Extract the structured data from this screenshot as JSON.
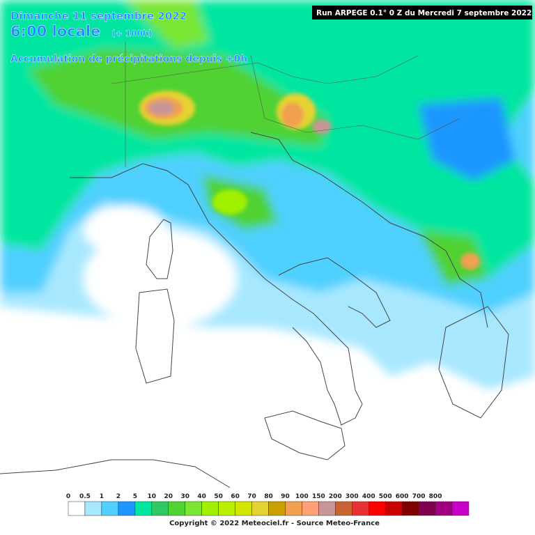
{
  "header": {
    "date": "Dimanche 11 septembre 2022",
    "time": "6:00 locale",
    "lead": "(+ 100h)",
    "subtitle": "Accumulation de précipitations depuis +0h"
  },
  "run": "Run ARPEGE 0.1° 0 Z du Mercredi 7 septembre 2022",
  "legend": {
    "labels": [
      "0",
      "0.5",
      "1",
      "2",
      "5",
      "10",
      "20",
      "30",
      "40",
      "50",
      "60",
      "70",
      "80",
      "90",
      "100",
      "150",
      "200",
      "300",
      "400",
      "500",
      "600",
      "700",
      "800"
    ],
    "colors": [
      "#ffffff",
      "#a8e8ff",
      "#50d0ff",
      "#1e96ff",
      "#00e6a0",
      "#30c864",
      "#50d232",
      "#78e632",
      "#a0f000",
      "#b8f000",
      "#d2e600",
      "#e6d232",
      "#c8a000",
      "#f0a050",
      "#ffa078",
      "#c89696",
      "#c86432",
      "#e63232",
      "#ff0000",
      "#c80000",
      "#800000",
      "#800050",
      "#a00080",
      "#c800c8"
    ]
  },
  "copyright": "Copyright © 2022 Meteociel.fr - Source Meteo-France"
}
